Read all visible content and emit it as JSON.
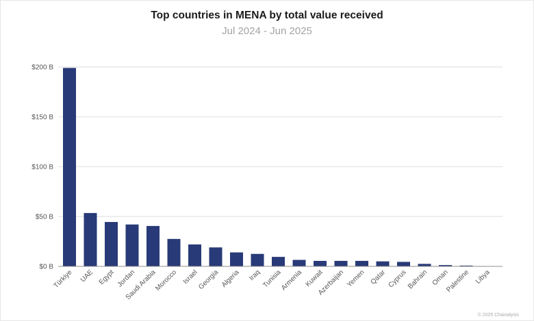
{
  "chart_data": {
    "type": "bar",
    "title": "Top countries in MENA by total value received",
    "subtitle": "Jul 2024 - Jun 2025",
    "xlabel": "",
    "ylabel": "",
    "ylim": [
      0,
      200
    ],
    "y_ticks": [
      {
        "value": 0,
        "label": "$0 B"
      },
      {
        "value": 50,
        "label": "$50 B"
      },
      {
        "value": 100,
        "label": "$100 B"
      },
      {
        "value": 150,
        "label": "$150 B"
      },
      {
        "value": 200,
        "label": "$200 B"
      }
    ],
    "grid": true,
    "categories": [
      "Türkiye",
      "UAE",
      "Egypt",
      "Jordan",
      "Saudi Arabia",
      "Morocco",
      "Israel",
      "Georgia",
      "Algeria",
      "Iraq",
      "Tunisia",
      "Armenia",
      "Kuwait",
      "Azerbaijan",
      "Yemen",
      "Qatar",
      "Cyprus",
      "Bahrain",
      "Oman",
      "Palestine",
      "Libya"
    ],
    "values": [
      199,
      53.5,
      44.5,
      42,
      40.5,
      27.5,
      22,
      19,
      14,
      12.5,
      9.5,
      6.5,
      5.5,
      5.5,
      5.5,
      5,
      4.5,
      2.5,
      1.3,
      0.8,
      0.2
    ],
    "bar_color": "#283a77"
  },
  "footer": "© 2025 Chainalysis"
}
